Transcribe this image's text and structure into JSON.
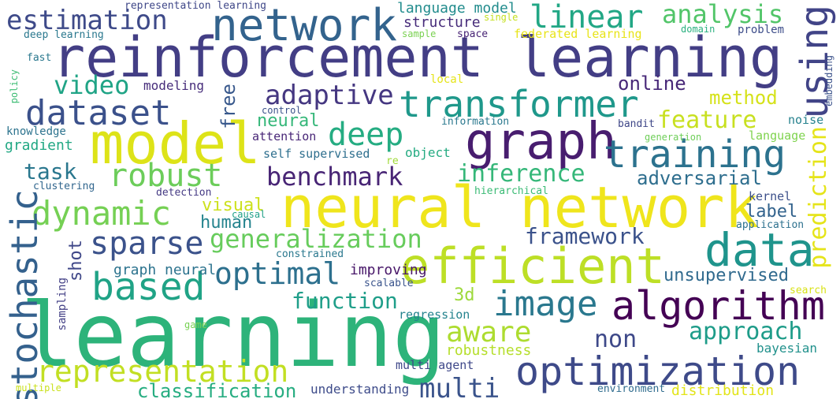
{
  "words": [
    {
      "text": "learning",
      "color": "#2db37a"
    },
    {
      "text": "reinforcement learning",
      "color": "#433e85"
    },
    {
      "text": "neural network",
      "color": "#efe51c"
    },
    {
      "text": "model",
      "color": "#dde318"
    },
    {
      "text": "network",
      "color": "#33638d"
    },
    {
      "text": "efficient",
      "color": "#bddf26"
    },
    {
      "text": "graph",
      "color": "#481d6f"
    },
    {
      "text": "data",
      "color": "#1f948c"
    },
    {
      "text": "algorithm",
      "color": "#440154"
    },
    {
      "text": "optimization",
      "color": "#3e4a89"
    },
    {
      "text": "transformer",
      "color": "#1f988b"
    },
    {
      "text": "training",
      "color": "#2c728e"
    },
    {
      "text": "image",
      "color": "#2a788e"
    },
    {
      "text": "representation",
      "color": "#c2df23"
    },
    {
      "text": "dataset",
      "color": "#3b518b"
    },
    {
      "text": "based",
      "color": "#20a386"
    },
    {
      "text": "dynamic",
      "color": "#75d054"
    },
    {
      "text": "robust",
      "color": "#6ccd5a"
    },
    {
      "text": "stochastic",
      "color": "#34618d"
    },
    {
      "text": "linear",
      "color": "#22a785"
    },
    {
      "text": "using",
      "color": "#414487"
    },
    {
      "text": "estimation",
      "color": "#3e4a89"
    },
    {
      "text": "deep",
      "color": "#25ac82"
    },
    {
      "text": "optimal",
      "color": "#2d708e"
    },
    {
      "text": "generalization",
      "color": "#67cc5c"
    },
    {
      "text": "sparse",
      "color": "#3b528b"
    },
    {
      "text": "analysis",
      "color": "#52c569"
    },
    {
      "text": "adaptive",
      "color": "#453781"
    },
    {
      "text": "benchmark",
      "color": "#482575"
    },
    {
      "text": "inference",
      "color": "#35b779"
    },
    {
      "text": "video",
      "color": "#20a486"
    },
    {
      "text": "aware",
      "color": "#addc30"
    },
    {
      "text": "multi",
      "color": "#3a538b"
    },
    {
      "text": "approach",
      "color": "#1e9c89"
    },
    {
      "text": "prediction",
      "color": "#e5e419"
    },
    {
      "text": "framework",
      "color": "#3b528b"
    },
    {
      "text": "function",
      "color": "#1f9e89"
    },
    {
      "text": "non",
      "color": "#3e4989"
    },
    {
      "text": "feature",
      "color": "#c8e020"
    },
    {
      "text": "task",
      "color": "#2a778e"
    },
    {
      "text": "method",
      "color": "#d5e21a"
    },
    {
      "text": "adversarial",
      "color": "#2e6e8e"
    },
    {
      "text": "online",
      "color": "#482878"
    },
    {
      "text": "unsupervised",
      "color": "#306a8e"
    },
    {
      "text": "human",
      "color": "#25848e"
    },
    {
      "text": "classification",
      "color": "#27ad81"
    },
    {
      "text": "language model",
      "color": "#228c8d"
    },
    {
      "text": "structure",
      "color": "#472c7a"
    },
    {
      "text": "visual",
      "color": "#cde11d"
    },
    {
      "text": "neural",
      "color": "#35b779"
    },
    {
      "text": "label",
      "color": "#33638d"
    },
    {
      "text": "free",
      "color": "#38588c"
    },
    {
      "text": "shot",
      "color": "#3f4788"
    },
    {
      "text": "3d",
      "color": "#9dd93b"
    },
    {
      "text": "graph neural",
      "color": "#2c738e"
    },
    {
      "text": "improving",
      "color": "#481769"
    },
    {
      "text": "modeling",
      "color": "#472d7b"
    },
    {
      "text": "gradient",
      "color": "#22a884"
    },
    {
      "text": "robustness",
      "color": "#b5de2b"
    },
    {
      "text": "understanding",
      "color": "#3e4c8a"
    },
    {
      "text": "distribution",
      "color": "#e2e418"
    },
    {
      "text": "bayesian",
      "color": "#21918c"
    },
    {
      "text": "regression",
      "color": "#25838e"
    },
    {
      "text": "multi agent",
      "color": "#3f4889"
    },
    {
      "text": "knowledge",
      "color": "#2c738e"
    },
    {
      "text": "attention",
      "color": "#482677"
    },
    {
      "text": "self supervised",
      "color": "#2e6f8e"
    },
    {
      "text": "object",
      "color": "#25ab82"
    },
    {
      "text": "language",
      "color": "#7fd34e"
    },
    {
      "text": "noise",
      "color": "#26828e"
    },
    {
      "text": "kernel",
      "color": "#3c4f8a"
    },
    {
      "text": "application",
      "color": "#2d718e"
    },
    {
      "text": "clustering",
      "color": "#31668e"
    },
    {
      "text": "detection",
      "color": "#443983"
    },
    {
      "text": "hierarchical",
      "color": "#3bbb75"
    },
    {
      "text": "causal",
      "color": "#1fa088"
    },
    {
      "text": "constrained",
      "color": "#2a788e"
    },
    {
      "text": "scalable",
      "color": "#3a548c"
    },
    {
      "text": "sampling",
      "color": "#423f85"
    },
    {
      "text": "search",
      "color": "#d8e219"
    },
    {
      "text": "environment",
      "color": "#2f6c8e"
    },
    {
      "text": "game",
      "color": "#77d153"
    },
    {
      "text": "multiple",
      "color": "#cae11f"
    },
    {
      "text": "representation learning",
      "color": "#3f4788"
    },
    {
      "text": "deep learning",
      "color": "#2a788e"
    },
    {
      "text": "single",
      "color": "#c5e021"
    },
    {
      "text": "sample",
      "color": "#7ad151"
    },
    {
      "text": "space",
      "color": "#482475"
    },
    {
      "text": "federated learning",
      "color": "#e8e419"
    },
    {
      "text": "domain",
      "color": "#2ab07f"
    },
    {
      "text": "problem",
      "color": "#3d4d8a"
    },
    {
      "text": "fast",
      "color": "#2a788e"
    },
    {
      "text": "policy",
      "color": "#3dbc74"
    },
    {
      "text": "embedding",
      "color": "#3b528b"
    },
    {
      "text": "local",
      "color": "#e5e419"
    },
    {
      "text": "control",
      "color": "#3b528b"
    },
    {
      "text": "information",
      "color": "#2a788e"
    },
    {
      "text": "bandit",
      "color": "#3f4788"
    },
    {
      "text": "generation",
      "color": "#6ece58"
    },
    {
      "text": "re",
      "color": "#a0da39"
    }
  ]
}
